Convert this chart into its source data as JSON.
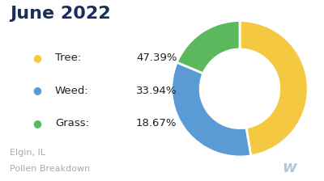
{
  "title": "June 2022",
  "subtitle_line1": "Elgin, IL",
  "subtitle_line2": "Pollen Breakdown",
  "slices": [
    {
      "label": "Tree",
      "value": 47.39,
      "color": "#F5C842"
    },
    {
      "label": "Weed",
      "value": 33.94,
      "color": "#5B9BD5"
    },
    {
      "label": "Grass",
      "value": 18.67,
      "color": "#5CB85C"
    }
  ],
  "title_color": "#1a2e5a",
  "title_fontsize": 16,
  "legend_label_color": "#222222",
  "legend_pct_color": "#222222",
  "legend_fontsize": 9.5,
  "subtitle_color": "#aaaaaa",
  "subtitle_fontsize": 8,
  "background_color": "#ffffff",
  "start_angle": 90,
  "watermark_color": "#b8c4d8",
  "watermark_text": "w"
}
